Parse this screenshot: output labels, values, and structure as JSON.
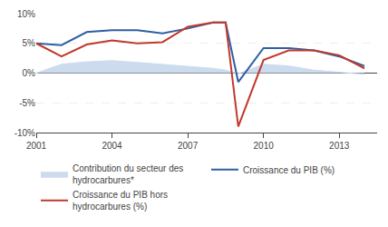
{
  "chart_data": {
    "type": "line",
    "x": [
      2001,
      2002,
      2003,
      2004,
      2005,
      2006,
      2007,
      2008,
      2008.5,
      2009,
      2010,
      2011,
      2012,
      2013,
      2014
    ],
    "xlim": [
      2001,
      2014.5
    ],
    "xticks": [
      2001,
      2004,
      2007,
      2010,
      2013
    ],
    "ylim": [
      -10,
      10
    ],
    "yticks": [
      {
        "value": -10,
        "label": "-10%"
      },
      {
        "value": -5,
        "label": "-5%"
      },
      {
        "value": 0,
        "label": "0%"
      },
      {
        "value": 5,
        "label": "5%"
      },
      {
        "value": 10,
        "label": "10%"
      }
    ],
    "grid": "y",
    "legend": "bottom",
    "series": [
      {
        "name": "Contribution du secteur des\nhydrocarbures*",
        "type": "area",
        "color": "#ccdcee",
        "values": [
          0.0,
          1.5,
          1.9,
          2.1,
          1.8,
          1.5,
          1.2,
          0.8,
          0.5,
          -0.1,
          1.5,
          1.2,
          0.5,
          0.1,
          -0.2
        ]
      },
      {
        "name": "Croissance du PIB (%)",
        "type": "line",
        "color": "#2e5fa3",
        "values": [
          5.0,
          4.7,
          6.9,
          7.2,
          7.2,
          6.7,
          7.5,
          8.5,
          8.5,
          -1.5,
          4.2,
          4.2,
          3.8,
          2.8,
          1.2
        ]
      },
      {
        "name": "Croissance du PIB hors\nhydrocarbures (%)",
        "type": "line",
        "color": "#c0392b",
        "values": [
          5.0,
          2.8,
          4.8,
          5.5,
          5.0,
          5.2,
          7.8,
          8.5,
          8.5,
          -9.0,
          2.2,
          3.8,
          3.8,
          3.0,
          0.8
        ]
      }
    ]
  }
}
